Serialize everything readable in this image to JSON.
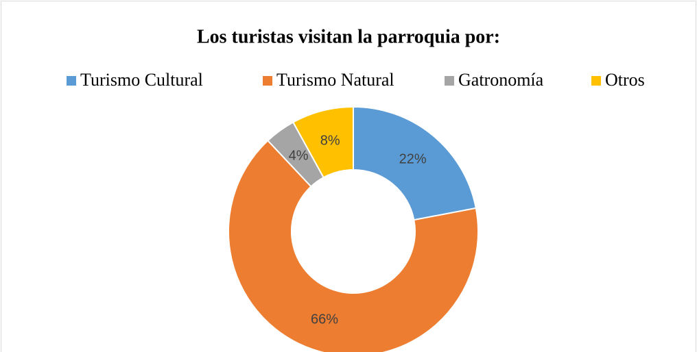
{
  "chart_data": {
    "type": "pie",
    "title": "Los turistas visitan la parroquia por:",
    "categories": [
      "Turismo Cultural",
      "Turismo Natural",
      "Gatronomía",
      "Otros"
    ],
    "values": [
      22,
      66,
      4,
      8
    ],
    "value_labels": [
      "22%",
      "66%",
      "4%",
      "8%"
    ],
    "colors": [
      "#5b9bd5",
      "#ed7d31",
      "#a5a5a5",
      "#ffc000"
    ],
    "legend": "top"
  }
}
